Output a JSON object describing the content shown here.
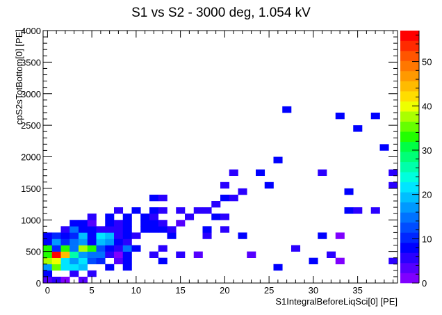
{
  "chart_data": {
    "type": "heatmap",
    "title": "S1 vs S2 - 3000 deg, 1.054 kV",
    "xlabel": "S1IntegralBeforeLiqSci[0] [PE]",
    "ylabel": "cpS2sTotBottom[0] [PE]",
    "xlim": [
      -0.5,
      39.5
    ],
    "ylim": [
      0,
      4000
    ],
    "x_ticks": [
      0,
      5,
      10,
      15,
      20,
      25,
      30,
      35
    ],
    "y_ticks": [
      0,
      500,
      1000,
      1500,
      2000,
      2500,
      3000,
      3500,
      4000
    ],
    "zlim": [
      0,
      57
    ],
    "z_ticks": [
      0,
      10,
      20,
      30,
      40,
      50
    ],
    "bin_width_x": 1,
    "bin_width_y": 100,
    "palette": [
      "#7f00ff",
      "#5500ff",
      "#2a00ff",
      "#0000ff",
      "#0026ff",
      "#004cff",
      "#0072ff",
      "#0099ff",
      "#00bfff",
      "#00e5ff",
      "#00ffdd",
      "#00ffaa",
      "#00ff77",
      "#00ff44",
      "#22ff00",
      "#66ff00",
      "#aaff00",
      "#eeff00",
      "#ffdd00",
      "#ffbb00",
      "#ff9900",
      "#ff7700",
      "#ff5500",
      "#ff2a00",
      "#ff0000"
    ],
    "bins": [
      {
        "x": 0,
        "y": 50,
        "z": 4
      },
      {
        "x": 1,
        "y": 50,
        "z": 6
      },
      {
        "x": 2,
        "y": 50,
        "z": 2
      },
      {
        "x": 4,
        "y": 50,
        "z": 4
      },
      {
        "x": 0,
        "y": 150,
        "z": 7
      },
      {
        "x": 3,
        "y": 150,
        "z": 6
      },
      {
        "x": 5,
        "y": 150,
        "z": 5
      },
      {
        "x": 0,
        "y": 250,
        "z": 18
      },
      {
        "x": 1,
        "y": 250,
        "z": 36
      },
      {
        "x": 2,
        "y": 250,
        "z": 22
      },
      {
        "x": 3,
        "y": 250,
        "z": 22
      },
      {
        "x": 4,
        "y": 250,
        "z": 20
      },
      {
        "x": 7,
        "y": 250,
        "z": 9
      },
      {
        "x": 9,
        "y": 250,
        "z": 8
      },
      {
        "x": 26,
        "y": 250,
        "z": 7
      },
      {
        "x": 0,
        "y": 350,
        "z": 37
      },
      {
        "x": 1,
        "y": 350,
        "z": 41
      },
      {
        "x": 2,
        "y": 350,
        "z": 22
      },
      {
        "x": 3,
        "y": 350,
        "z": 18
      },
      {
        "x": 4,
        "y": 350,
        "z": 21
      },
      {
        "x": 5,
        "y": 350,
        "z": 12
      },
      {
        "x": 6,
        "y": 350,
        "z": 11
      },
      {
        "x": 8,
        "y": 350,
        "z": 4
      },
      {
        "x": 9,
        "y": 350,
        "z": 7
      },
      {
        "x": 13,
        "y": 350,
        "z": 7
      },
      {
        "x": 30,
        "y": 350,
        "z": 7
      },
      {
        "x": 33,
        "y": 350,
        "z": 2
      },
      {
        "x": 39,
        "y": 350,
        "z": 5
      },
      {
        "x": 0,
        "y": 450,
        "z": 34
      },
      {
        "x": 1,
        "y": 450,
        "z": 55
      },
      {
        "x": 2,
        "y": 450,
        "z": 44
      },
      {
        "x": 3,
        "y": 450,
        "z": 26
      },
      {
        "x": 4,
        "y": 450,
        "z": 18
      },
      {
        "x": 5,
        "y": 450,
        "z": 15
      },
      {
        "x": 6,
        "y": 450,
        "z": 14
      },
      {
        "x": 7,
        "y": 450,
        "z": 6
      },
      {
        "x": 8,
        "y": 450,
        "z": 2
      },
      {
        "x": 9,
        "y": 450,
        "z": 8
      },
      {
        "x": 12,
        "y": 450,
        "z": 6
      },
      {
        "x": 15,
        "y": 450,
        "z": 6
      },
      {
        "x": 17,
        "y": 450,
        "z": 3
      },
      {
        "x": 23,
        "y": 450,
        "z": 3
      },
      {
        "x": 32,
        "y": 450,
        "z": 6
      },
      {
        "x": 0,
        "y": 550,
        "z": 32
      },
      {
        "x": 1,
        "y": 550,
        "z": 10
      },
      {
        "x": 2,
        "y": 550,
        "z": 33
      },
      {
        "x": 3,
        "y": 550,
        "z": 14
      },
      {
        "x": 4,
        "y": 550,
        "z": 38
      },
      {
        "x": 5,
        "y": 550,
        "z": 34
      },
      {
        "x": 6,
        "y": 550,
        "z": 12
      },
      {
        "x": 7,
        "y": 550,
        "z": 9
      },
      {
        "x": 8,
        "y": 550,
        "z": 5
      },
      {
        "x": 9,
        "y": 550,
        "z": 14
      },
      {
        "x": 10,
        "y": 550,
        "z": 8
      },
      {
        "x": 13,
        "y": 550,
        "z": 6
      },
      {
        "x": 28,
        "y": 550,
        "z": 6
      },
      {
        "x": 0,
        "y": 650,
        "z": 8
      },
      {
        "x": 1,
        "y": 650,
        "z": 17
      },
      {
        "x": 2,
        "y": 650,
        "z": 11
      },
      {
        "x": 3,
        "y": 650,
        "z": 15
      },
      {
        "x": 4,
        "y": 650,
        "z": 17
      },
      {
        "x": 5,
        "y": 650,
        "z": 9
      },
      {
        "x": 6,
        "y": 650,
        "z": 19
      },
      {
        "x": 7,
        "y": 650,
        "z": 18
      },
      {
        "x": 8,
        "y": 650,
        "z": 7
      },
      {
        "x": 9,
        "y": 650,
        "z": 5
      },
      {
        "x": 0,
        "y": 750,
        "z": 9
      },
      {
        "x": 1,
        "y": 750,
        "z": 10
      },
      {
        "x": 2,
        "y": 750,
        "z": 9
      },
      {
        "x": 3,
        "y": 750,
        "z": 10
      },
      {
        "x": 4,
        "y": 750,
        "z": 19
      },
      {
        "x": 5,
        "y": 750,
        "z": 7
      },
      {
        "x": 6,
        "y": 750,
        "z": 21
      },
      {
        "x": 7,
        "y": 750,
        "z": 19
      },
      {
        "x": 8,
        "y": 750,
        "z": 6
      },
      {
        "x": 9,
        "y": 750,
        "z": 7
      },
      {
        "x": 10,
        "y": 750,
        "z": 5
      },
      {
        "x": 14,
        "y": 750,
        "z": 8
      },
      {
        "x": 18,
        "y": 750,
        "z": 6
      },
      {
        "x": 22,
        "y": 750,
        "z": 7
      },
      {
        "x": 31,
        "y": 750,
        "z": 7
      },
      {
        "x": 33,
        "y": 750,
        "z": 2
      },
      {
        "x": 2,
        "y": 850,
        "z": 5
      },
      {
        "x": 3,
        "y": 850,
        "z": 15
      },
      {
        "x": 4,
        "y": 850,
        "z": 7
      },
      {
        "x": 5,
        "y": 850,
        "z": 8
      },
      {
        "x": 6,
        "y": 850,
        "z": 5
      },
      {
        "x": 7,
        "y": 850,
        "z": 6
      },
      {
        "x": 8,
        "y": 850,
        "z": 6
      },
      {
        "x": 9,
        "y": 850,
        "z": 7
      },
      {
        "x": 11,
        "y": 850,
        "z": 8
      },
      {
        "x": 12,
        "y": 850,
        "z": 7
      },
      {
        "x": 13,
        "y": 850,
        "z": 7
      },
      {
        "x": 14,
        "y": 850,
        "z": 6
      },
      {
        "x": 18,
        "y": 850,
        "z": 7
      },
      {
        "x": 20,
        "y": 850,
        "z": 6
      },
      {
        "x": 3,
        "y": 950,
        "z": 8
      },
      {
        "x": 4,
        "y": 950,
        "z": 9
      },
      {
        "x": 5,
        "y": 950,
        "z": 4
      },
      {
        "x": 7,
        "y": 950,
        "z": 7
      },
      {
        "x": 8,
        "y": 950,
        "z": 6
      },
      {
        "x": 9,
        "y": 950,
        "z": 7
      },
      {
        "x": 11,
        "y": 950,
        "z": 8
      },
      {
        "x": 12,
        "y": 950,
        "z": 7
      },
      {
        "x": 13,
        "y": 950,
        "z": 6
      },
      {
        "x": 15,
        "y": 950,
        "z": 3
      },
      {
        "x": 5,
        "y": 1050,
        "z": 6
      },
      {
        "x": 7,
        "y": 1050,
        "z": 7
      },
      {
        "x": 9,
        "y": 1050,
        "z": 8
      },
      {
        "x": 11,
        "y": 1050,
        "z": 7
      },
      {
        "x": 12,
        "y": 1050,
        "z": 6
      },
      {
        "x": 16,
        "y": 1050,
        "z": 6
      },
      {
        "x": 19,
        "y": 1050,
        "z": 7
      },
      {
        "x": 20,
        "y": 1050,
        "z": 5
      },
      {
        "x": 8,
        "y": 1150,
        "z": 6
      },
      {
        "x": 10,
        "y": 1150,
        "z": 7
      },
      {
        "x": 12,
        "y": 1150,
        "z": 7
      },
      {
        "x": 13,
        "y": 1150,
        "z": 6
      },
      {
        "x": 15,
        "y": 1150,
        "z": 6
      },
      {
        "x": 17,
        "y": 1150,
        "z": 5
      },
      {
        "x": 18,
        "y": 1150,
        "z": 6
      },
      {
        "x": 34,
        "y": 1150,
        "z": 7
      },
      {
        "x": 35,
        "y": 1150,
        "z": 6
      },
      {
        "x": 37,
        "y": 1150,
        "z": 5
      },
      {
        "x": 19,
        "y": 1250,
        "z": 6
      },
      {
        "x": 12,
        "y": 1350,
        "z": 7
      },
      {
        "x": 13,
        "y": 1350,
        "z": 6
      },
      {
        "x": 20,
        "y": 1350,
        "z": 7
      },
      {
        "x": 21,
        "y": 1350,
        "z": 6
      },
      {
        "x": 22,
        "y": 1450,
        "z": 6
      },
      {
        "x": 34,
        "y": 1450,
        "z": 7
      },
      {
        "x": 20,
        "y": 1550,
        "z": 6
      },
      {
        "x": 25,
        "y": 1550,
        "z": 7
      },
      {
        "x": 39,
        "y": 1550,
        "z": 6
      },
      {
        "x": 21,
        "y": 1750,
        "z": 6
      },
      {
        "x": 24,
        "y": 1750,
        "z": 7
      },
      {
        "x": 31,
        "y": 1750,
        "z": 6
      },
      {
        "x": 39,
        "y": 1750,
        "z": 6
      },
      {
        "x": 26,
        "y": 1950,
        "z": 7
      },
      {
        "x": 38,
        "y": 2150,
        "z": 7
      },
      {
        "x": 35,
        "y": 2450,
        "z": 7
      },
      {
        "x": 33,
        "y": 2650,
        "z": 7
      },
      {
        "x": 37,
        "y": 2650,
        "z": 7
      },
      {
        "x": 27,
        "y": 2750,
        "z": 7
      }
    ]
  }
}
